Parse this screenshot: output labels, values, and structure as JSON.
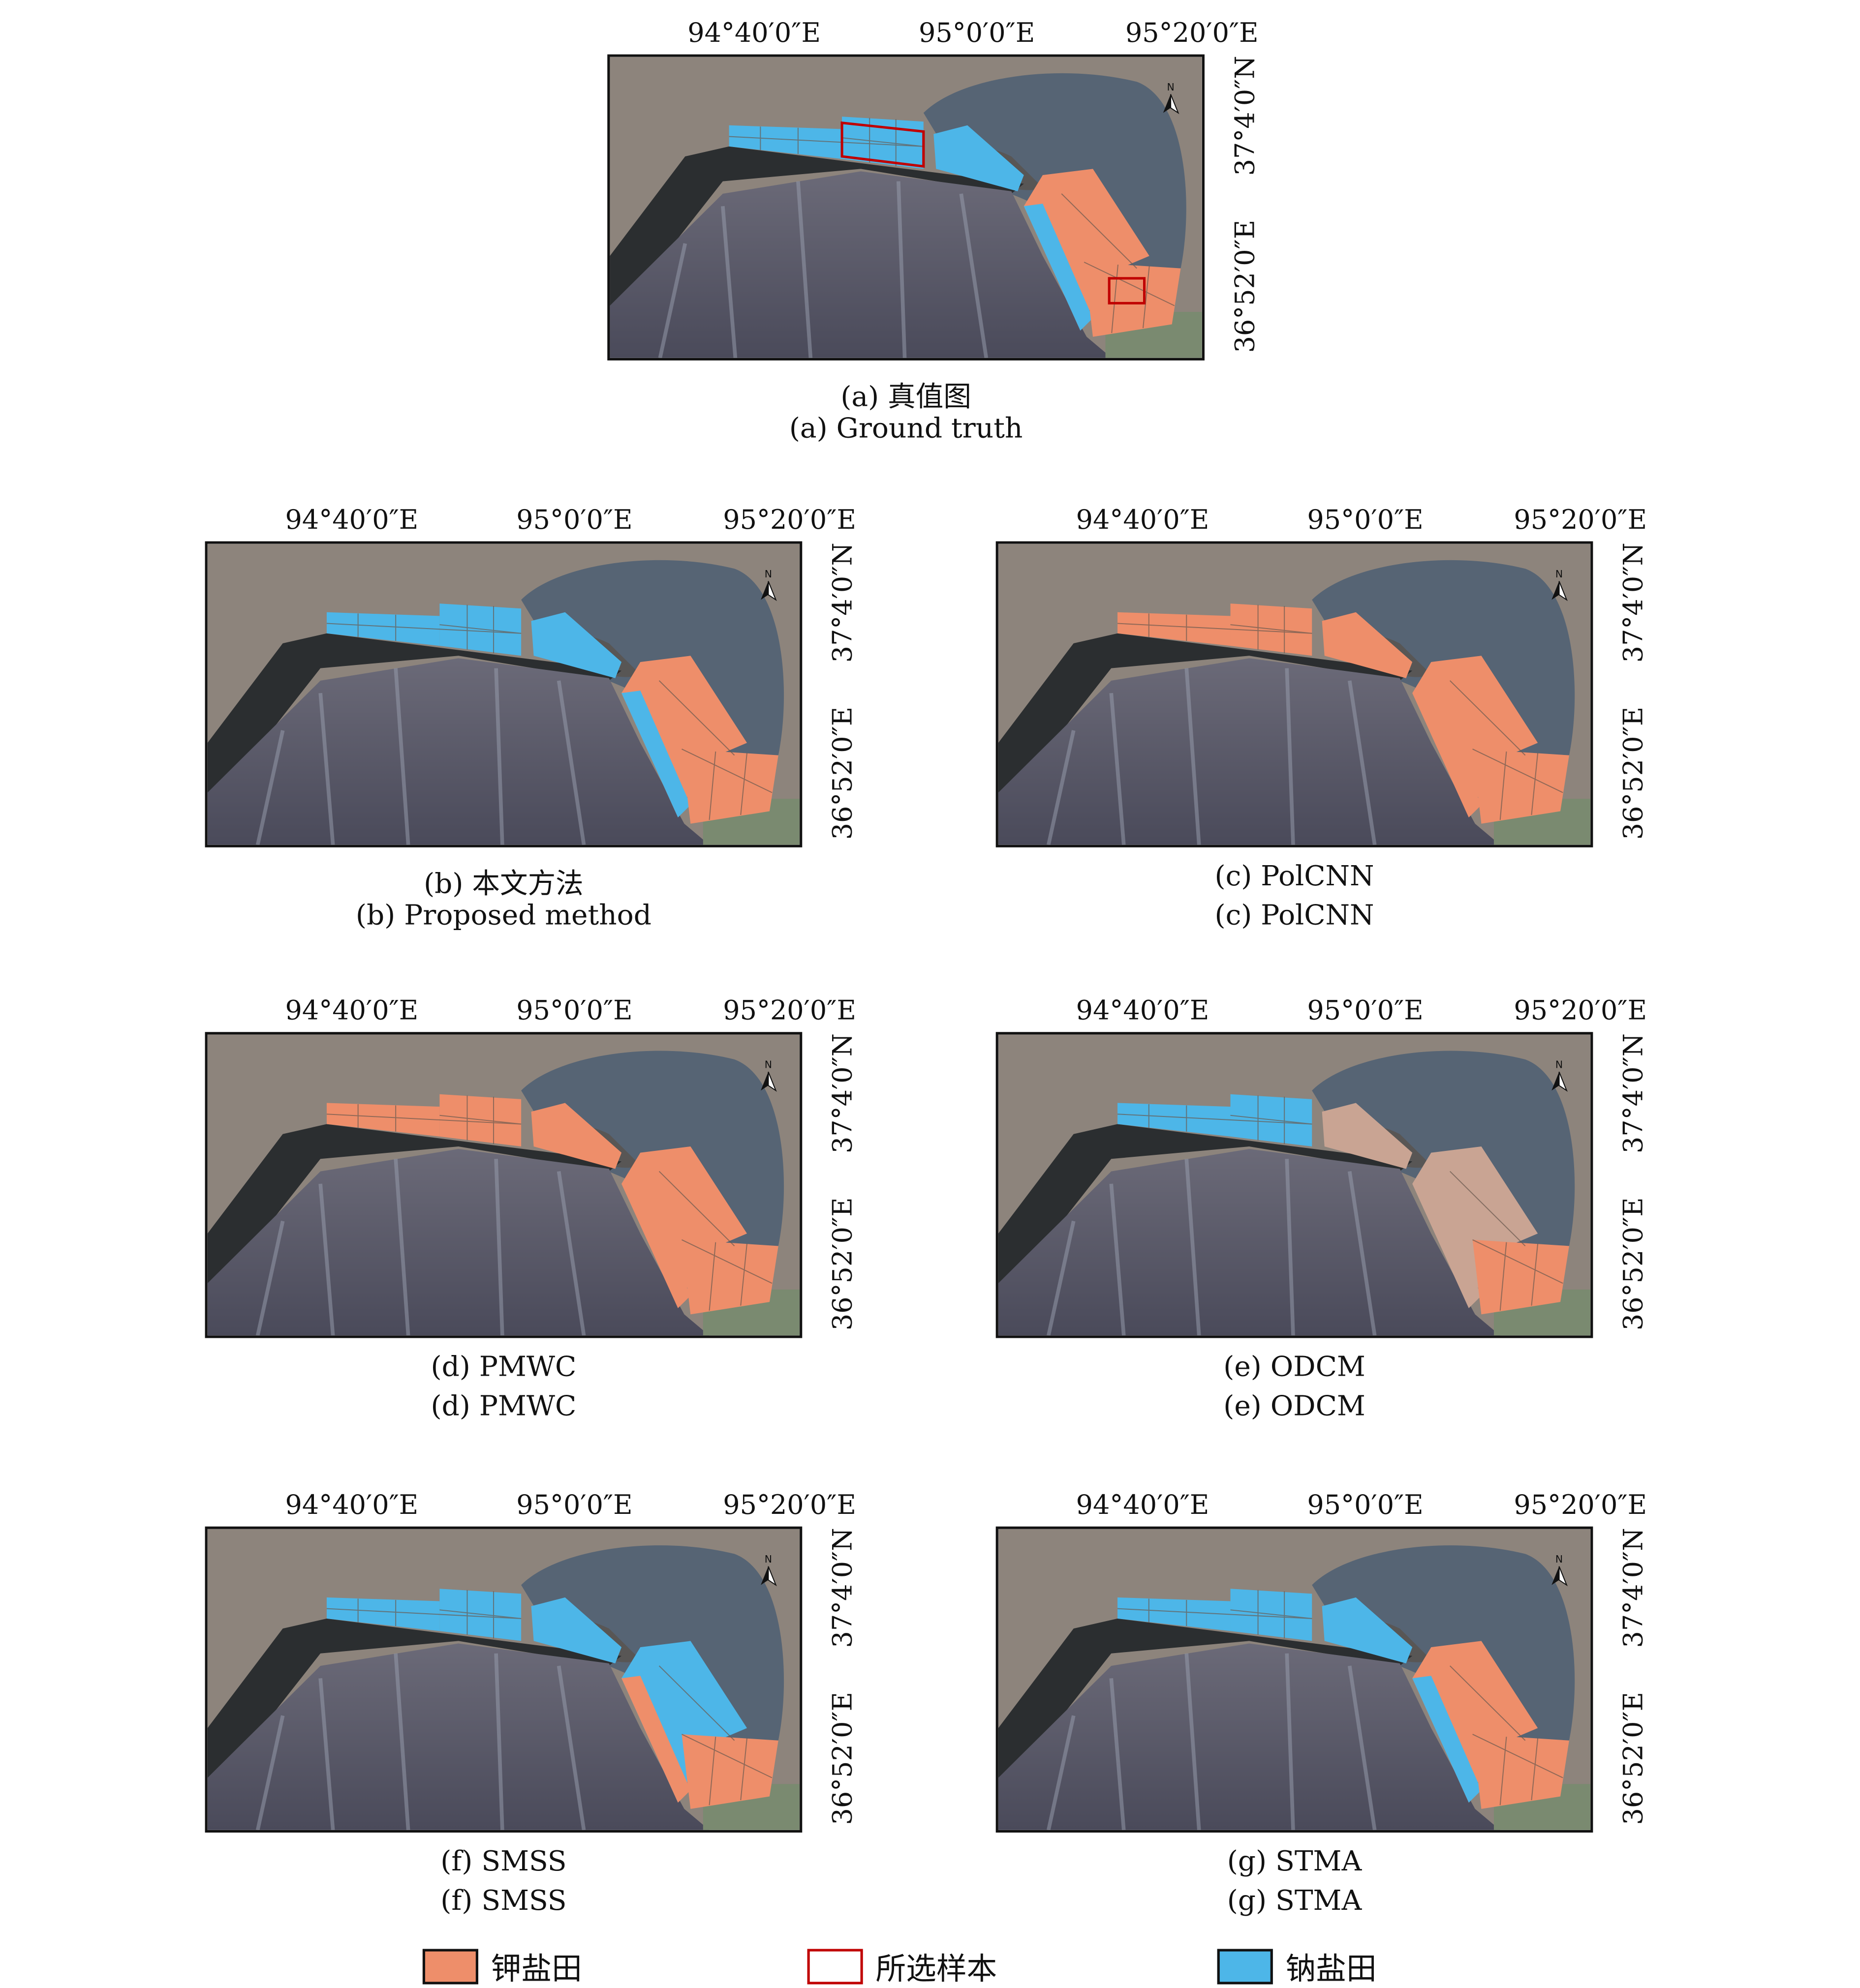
{
  "colors": {
    "potassium": "#ee8e6a",
    "sodium": "#4db6e8",
    "sample": "#c00000",
    "mixed_pale": "#c9a493"
  },
  "axes": {
    "lon_labels": [
      "94°40′0″E",
      "95°0′0″E",
      "95°20′0″E"
    ],
    "lat_labels": [
      "37°4′0″N",
      "36°52′0″E"
    ],
    "north_arrow": "N"
  },
  "panels": [
    {
      "id": "a",
      "caption_cn": "(a) 真值图",
      "caption_en": "(a) Ground truth",
      "fields": {
        "west_strip": "sodium",
        "middle_block": "sodium",
        "diagonal": "sodium",
        "southeast_belt": "potassium",
        "southeast_belt_edge": "sodium",
        "southeast_block": "potassium"
      },
      "samples": true
    },
    {
      "id": "b",
      "caption_cn": "(b) 本文方法",
      "caption_en": "(b) Proposed method",
      "fields": {
        "west_strip": "sodium",
        "middle_block": "sodium",
        "diagonal": "sodium",
        "southeast_belt": "potassium",
        "southeast_belt_edge": "sodium",
        "southeast_block": "potassium"
      },
      "samples": false
    },
    {
      "id": "c",
      "caption_cn": "(c) PolCNN",
      "caption_en": "(c) PolCNN",
      "fields": {
        "west_strip": "potassium",
        "middle_block": "potassium",
        "diagonal": "potassium",
        "southeast_belt": "potassium",
        "southeast_belt_edge": "potassium",
        "southeast_block": "potassium"
      },
      "samples": false
    },
    {
      "id": "d",
      "caption_cn": "(d) PMWC",
      "caption_en": "(d) PMWC",
      "fields": {
        "west_strip": "potassium",
        "middle_block": "potassium",
        "diagonal": "potassium",
        "southeast_belt": "potassium",
        "southeast_belt_edge": "potassium",
        "southeast_block": "potassium"
      },
      "samples": false
    },
    {
      "id": "e",
      "caption_cn": "(e) ODCM",
      "caption_en": "(e) ODCM",
      "fields": {
        "west_strip": "sodium",
        "middle_block": "sodium",
        "diagonal": "mixed_pale",
        "southeast_belt": "mixed_pale",
        "southeast_belt_edge": "mixed_pale",
        "southeast_block": "potassium"
      },
      "samples": false
    },
    {
      "id": "f",
      "caption_cn": "(f) SMSS",
      "caption_en": "(f) SMSS",
      "fields": {
        "west_strip": "sodium",
        "middle_block": "sodium",
        "diagonal": "sodium",
        "southeast_belt": "sodium",
        "southeast_belt_edge": "potassium",
        "southeast_block": "potassium"
      },
      "samples": false
    },
    {
      "id": "g",
      "caption_cn": "(g) STMA",
      "caption_en": "(g) STMA",
      "fields": {
        "west_strip": "sodium",
        "middle_block": "sodium",
        "diagonal": "sodium",
        "southeast_belt": "potassium",
        "southeast_belt_edge": "sodium",
        "southeast_block": "potassium"
      },
      "samples": false
    }
  ],
  "legend": [
    {
      "label": "钾盐田",
      "kind": "potassium"
    },
    {
      "label": "所选样本",
      "kind": "sample"
    },
    {
      "label": "钠盐田",
      "kind": "sodium"
    }
  ]
}
